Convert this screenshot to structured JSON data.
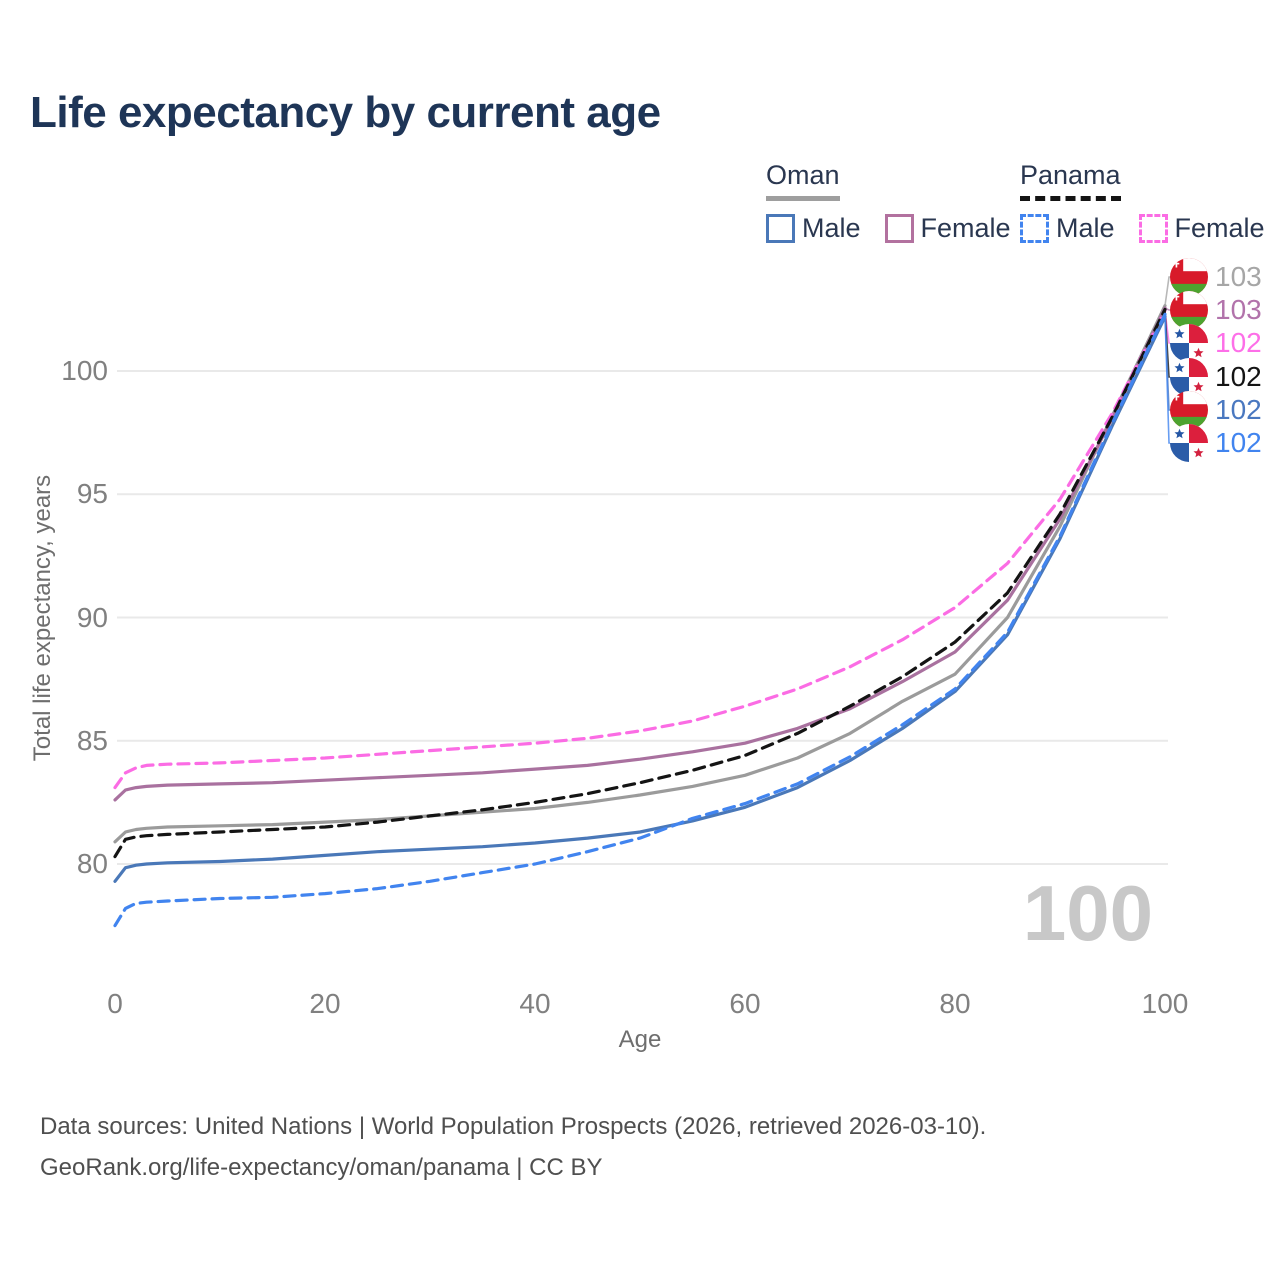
{
  "title": "Life expectancy by current age",
  "watermark": "100",
  "legend": {
    "groups": [
      {
        "country": "Oman",
        "line_style": "solid",
        "line_color": "#9e9e9e",
        "items": [
          {
            "label": "Male",
            "color": "#4a78b8",
            "dashed": false
          },
          {
            "label": "Female",
            "color": "#b2719f",
            "dashed": false
          }
        ]
      },
      {
        "country": "Panama",
        "line_style": "dashed",
        "line_color": "#141414",
        "items": [
          {
            "label": "Male",
            "color": "#4184ef",
            "dashed": true
          },
          {
            "label": "Female",
            "color": "#fb6ce4",
            "dashed": true
          }
        ]
      }
    ]
  },
  "axes": {
    "xlabel": "Age",
    "ylabel": "Total life expectancy, years",
    "x_ticks": [
      0,
      20,
      40,
      60,
      80,
      100
    ],
    "y_ticks": [
      80,
      85,
      90,
      95,
      100
    ]
  },
  "chart_data": {
    "type": "line",
    "title": "Life expectancy by current age",
    "xlabel": "Age",
    "ylabel": "Total life expectancy, years",
    "xlim": [
      0,
      100
    ],
    "ylim": [
      77,
      103
    ],
    "x_ticks": [
      0,
      20,
      40,
      60,
      80,
      100
    ],
    "y_ticks": [
      80,
      85,
      90,
      95,
      100
    ],
    "grid": "horizontal",
    "legend_position": "top-right",
    "series": [
      {
        "name": "Oman — All",
        "country": "Oman",
        "sex": "all",
        "color": "#9b9b9b",
        "dashed": false,
        "flag": "oman-flag-icon",
        "label_value": "103",
        "label_color": "#a6a6a6",
        "label_row": 0,
        "points": [
          [
            0,
            80.9
          ],
          [
            1,
            81.3
          ],
          [
            2,
            81.4
          ],
          [
            3,
            81.45
          ],
          [
            5,
            81.5
          ],
          [
            10,
            81.55
          ],
          [
            15,
            81.6
          ],
          [
            20,
            81.7
          ],
          [
            25,
            81.8
          ],
          [
            30,
            81.95
          ],
          [
            35,
            82.1
          ],
          [
            40,
            82.25
          ],
          [
            45,
            82.5
          ],
          [
            50,
            82.8
          ],
          [
            55,
            83.15
          ],
          [
            60,
            83.6
          ],
          [
            65,
            84.3
          ],
          [
            70,
            85.3
          ],
          [
            75,
            86.6
          ],
          [
            80,
            87.7
          ],
          [
            85,
            90.0
          ],
          [
            90,
            93.7
          ],
          [
            95,
            98.2
          ],
          [
            100,
            102.65
          ]
        ]
      },
      {
        "name": "Oman — Female",
        "country": "Oman",
        "sex": "female",
        "color": "#a9719f",
        "dashed": false,
        "flag": "oman-flag-icon",
        "label_value": "103",
        "label_color": "#b273ab",
        "label_row": 1,
        "points": [
          [
            0,
            82.6
          ],
          [
            1,
            83.0
          ],
          [
            2,
            83.1
          ],
          [
            3,
            83.15
          ],
          [
            5,
            83.2
          ],
          [
            10,
            83.25
          ],
          [
            15,
            83.3
          ],
          [
            20,
            83.4
          ],
          [
            25,
            83.5
          ],
          [
            30,
            83.6
          ],
          [
            35,
            83.7
          ],
          [
            40,
            83.85
          ],
          [
            45,
            84.0
          ],
          [
            50,
            84.25
          ],
          [
            55,
            84.55
          ],
          [
            60,
            84.9
          ],
          [
            65,
            85.5
          ],
          [
            70,
            86.3
          ],
          [
            75,
            87.4
          ],
          [
            80,
            88.6
          ],
          [
            85,
            90.7
          ],
          [
            90,
            94.0
          ],
          [
            95,
            98.1
          ],
          [
            100,
            102.55
          ]
        ]
      },
      {
        "name": "Panama — Female",
        "country": "Panama",
        "sex": "female",
        "color": "#fb6ce4",
        "dashed": true,
        "flag": "panama-flag-icon",
        "label_value": "102",
        "label_color": "#fd6fe8",
        "label_row": 2,
        "points": [
          [
            0,
            83.1
          ],
          [
            1,
            83.7
          ],
          [
            2,
            83.9
          ],
          [
            3,
            84.0
          ],
          [
            5,
            84.05
          ],
          [
            10,
            84.1
          ],
          [
            15,
            84.2
          ],
          [
            20,
            84.3
          ],
          [
            25,
            84.45
          ],
          [
            30,
            84.6
          ],
          [
            35,
            84.75
          ],
          [
            40,
            84.9
          ],
          [
            45,
            85.1
          ],
          [
            50,
            85.4
          ],
          [
            55,
            85.8
          ],
          [
            60,
            86.4
          ],
          [
            65,
            87.1
          ],
          [
            70,
            88.0
          ],
          [
            75,
            89.1
          ],
          [
            80,
            90.4
          ],
          [
            85,
            92.2
          ],
          [
            90,
            94.8
          ],
          [
            95,
            98.3
          ],
          [
            100,
            102.45
          ]
        ]
      },
      {
        "name": "Panama — All",
        "country": "Panama",
        "sex": "all",
        "color": "#141414",
        "dashed": true,
        "flag": "panama-flag-icon",
        "label_value": "102",
        "label_color": "#141414",
        "label_row": 3,
        "points": [
          [
            0,
            80.3
          ],
          [
            1,
            81.0
          ],
          [
            2,
            81.1
          ],
          [
            3,
            81.15
          ],
          [
            5,
            81.2
          ],
          [
            10,
            81.3
          ],
          [
            15,
            81.4
          ],
          [
            20,
            81.5
          ],
          [
            25,
            81.7
          ],
          [
            30,
            81.95
          ],
          [
            35,
            82.2
          ],
          [
            40,
            82.5
          ],
          [
            45,
            82.85
          ],
          [
            50,
            83.3
          ],
          [
            55,
            83.8
          ],
          [
            60,
            84.4
          ],
          [
            65,
            85.3
          ],
          [
            70,
            86.4
          ],
          [
            75,
            87.6
          ],
          [
            80,
            89.0
          ],
          [
            85,
            91.0
          ],
          [
            90,
            94.2
          ],
          [
            95,
            98.15
          ],
          [
            100,
            102.5
          ]
        ]
      },
      {
        "name": "Oman — Male",
        "country": "Oman",
        "sex": "male",
        "color": "#4a78b8",
        "dashed": false,
        "flag": "oman-flag-icon",
        "label_value": "102",
        "label_color": "#4a78c0",
        "label_row": 4,
        "points": [
          [
            0,
            79.3
          ],
          [
            1,
            79.85
          ],
          [
            2,
            79.95
          ],
          [
            3,
            80.0
          ],
          [
            5,
            80.05
          ],
          [
            10,
            80.1
          ],
          [
            15,
            80.2
          ],
          [
            20,
            80.35
          ],
          [
            25,
            80.5
          ],
          [
            30,
            80.6
          ],
          [
            35,
            80.7
          ],
          [
            40,
            80.85
          ],
          [
            45,
            81.05
          ],
          [
            50,
            81.3
          ],
          [
            55,
            81.75
          ],
          [
            60,
            82.3
          ],
          [
            65,
            83.1
          ],
          [
            70,
            84.2
          ],
          [
            75,
            85.5
          ],
          [
            80,
            87.0
          ],
          [
            85,
            89.3
          ],
          [
            90,
            93.2
          ],
          [
            95,
            97.8
          ],
          [
            100,
            102.2
          ]
        ]
      },
      {
        "name": "Panama — Male",
        "country": "Panama",
        "sex": "male",
        "color": "#4184ef",
        "dashed": true,
        "flag": "panama-flag-icon",
        "label_value": "102",
        "label_color": "#4184ef",
        "label_row": 5,
        "points": [
          [
            0,
            77.5
          ],
          [
            1,
            78.2
          ],
          [
            2,
            78.4
          ],
          [
            3,
            78.45
          ],
          [
            5,
            78.5
          ],
          [
            10,
            78.6
          ],
          [
            15,
            78.65
          ],
          [
            20,
            78.8
          ],
          [
            25,
            79.0
          ],
          [
            30,
            79.3
          ],
          [
            35,
            79.65
          ],
          [
            40,
            80.0
          ],
          [
            45,
            80.5
          ],
          [
            50,
            81.05
          ],
          [
            55,
            81.85
          ],
          [
            60,
            82.45
          ],
          [
            65,
            83.25
          ],
          [
            70,
            84.35
          ],
          [
            75,
            85.65
          ],
          [
            80,
            87.1
          ],
          [
            85,
            89.4
          ],
          [
            90,
            93.3
          ],
          [
            95,
            97.9
          ],
          [
            100,
            102.3
          ]
        ]
      }
    ]
  },
  "footer": {
    "line1": "Data sources: United Nations | World Population Prospects (2026, retrieved 2026-03-10).",
    "line2": "GeoRank.org/life-expectancy/oman/panama | CC BY"
  }
}
